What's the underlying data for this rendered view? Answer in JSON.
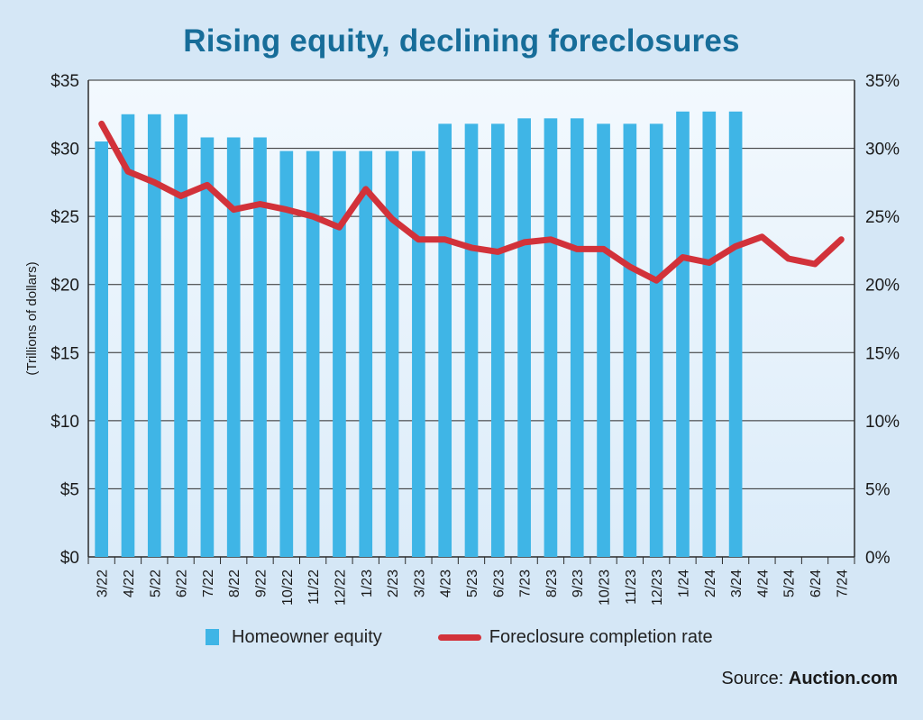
{
  "chart_data": {
    "type": "bar",
    "title": "Rising equity, declining foreclosures",
    "ylabel": "(Trillions of dollars)",
    "categories": [
      "3/22",
      "4/22",
      "5/22",
      "6/22",
      "7/22",
      "8/22",
      "9/22",
      "10/22",
      "11/22",
      "12/22",
      "1/23",
      "2/23",
      "3/23",
      "4/23",
      "5/23",
      "6/23",
      "7/23",
      "8/23",
      "9/23",
      "10/23",
      "11/23",
      "12/23",
      "1/24",
      "2/24",
      "3/24",
      "4/24",
      "5/24",
      "6/24",
      "7/24"
    ],
    "ylim": [
      0,
      35
    ],
    "y2lim": [
      0,
      35
    ],
    "y_ticks": [
      "$0",
      "$5",
      "$10",
      "$15",
      "$20",
      "$25",
      "$30",
      "$35"
    ],
    "y2_ticks": [
      "0%",
      "5%",
      "10%",
      "15%",
      "20%",
      "25%",
      "30%",
      "35%"
    ],
    "grid": true,
    "legend_position": "bottom",
    "series": [
      {
        "name": "Homeowner equity",
        "type": "bar",
        "axis": "left",
        "color": "#3fb5e6",
        "values": [
          30.5,
          32.5,
          32.5,
          32.5,
          30.8,
          30.8,
          30.8,
          29.8,
          29.8,
          29.8,
          29.8,
          29.8,
          29.8,
          31.8,
          31.8,
          31.8,
          32.2,
          32.2,
          32.2,
          31.8,
          31.8,
          31.8,
          32.7,
          32.7,
          32.7,
          null,
          null,
          null,
          null
        ]
      },
      {
        "name": "Foreclosure completion rate",
        "type": "line",
        "axis": "right",
        "color": "#d2323a",
        "values": [
          31.8,
          28.3,
          27.5,
          26.5,
          27.3,
          25.5,
          25.9,
          25.5,
          25.0,
          24.2,
          27.0,
          24.8,
          23.3,
          23.3,
          22.7,
          22.4,
          23.1,
          23.3,
          22.6,
          22.6,
          21.3,
          20.3,
          22.0,
          21.6,
          22.8,
          23.5,
          21.9,
          21.5,
          23.3
        ]
      }
    ]
  },
  "source": {
    "prefix": "Source: ",
    "name": "Auction.com"
  }
}
